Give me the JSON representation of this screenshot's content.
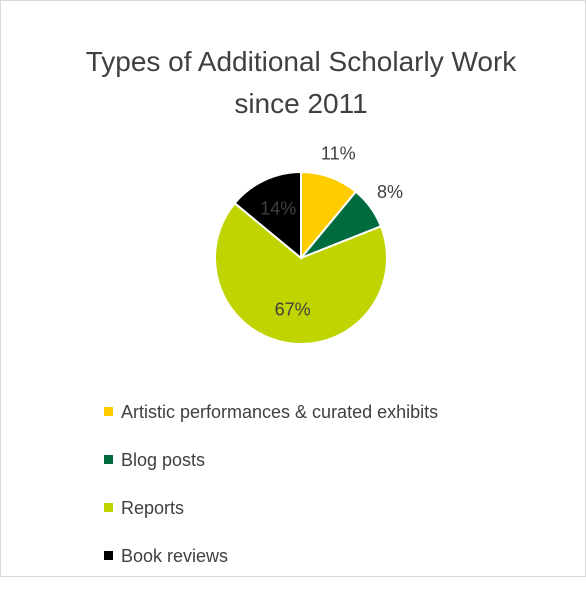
{
  "chart_data": {
    "type": "pie",
    "title": "Types of Additional Scholarly Work since 2011",
    "categories": [
      "Artistic performances & curated exhibits",
      "Blog posts",
      "Reports",
      "Book reviews"
    ],
    "values": [
      11,
      8,
      67,
      14
    ],
    "value_labels": [
      "11%",
      "8%",
      "67%",
      "14%"
    ],
    "colors": [
      "#ffcc00",
      "#006b3f",
      "#bfd400",
      "#000000"
    ],
    "legend": "bottom"
  }
}
